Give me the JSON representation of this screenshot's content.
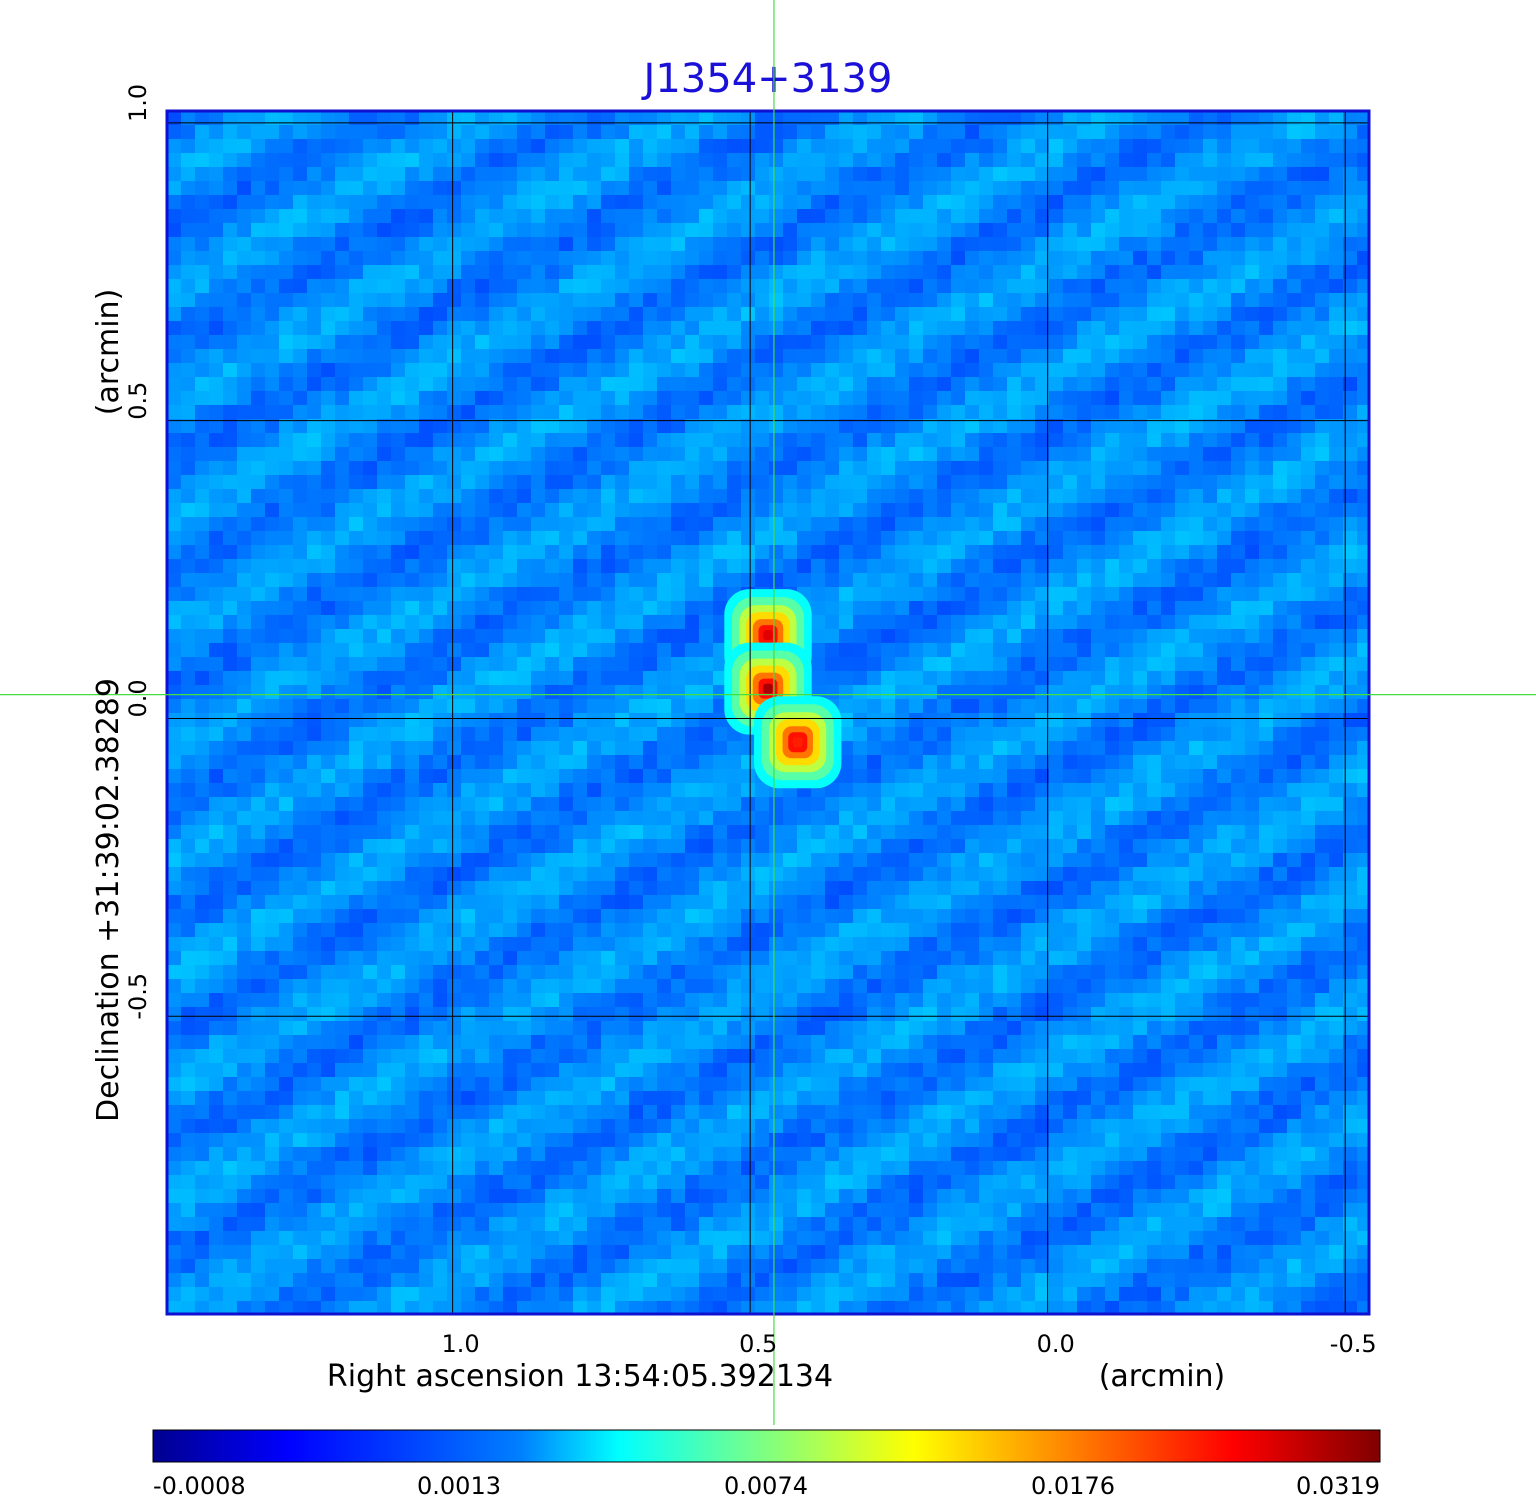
{
  "chart_data": {
    "type": "heatmap",
    "title": "J1354+3139",
    "xlabel": "Right ascension  13:54:05.392134",
    "xlabel_unit": "(arcmin)",
    "ylabel": "Declination  +31:39:02.38289",
    "ylabel_unit": "(arcmin)",
    "x_axis_reversed": true,
    "xlim": [
      1.48,
      -0.54
    ],
    "ylim": [
      -1.0,
      1.02
    ],
    "x_ticks": [
      "1.0",
      "0.5",
      "0.0",
      "-0.5"
    ],
    "x_tick_values": [
      1.0,
      0.5,
      0.0,
      -0.5
    ],
    "y_ticks": [
      "1.0",
      "0.5",
      "0.0",
      "-0.5"
    ],
    "y_tick_values": [
      1.0,
      0.5,
      0.0,
      -0.5
    ],
    "grid": true,
    "crosshair": {
      "x": 0.46,
      "y": 0.04,
      "color": "#44dd44"
    },
    "colorbar": {
      "orientation": "horizontal",
      "placement": "bottom",
      "ticks": [
        "-0.0008",
        "0.0013",
        "0.0074",
        "0.0176",
        "0.0319"
      ],
      "colormap": "jet"
    },
    "sources": [
      {
        "ra": 0.47,
        "dec": 0.14,
        "peak": 0.03
      },
      {
        "ra": 0.47,
        "dec": 0.05,
        "peak": 0.0319
      },
      {
        "ra": 0.42,
        "dec": -0.04,
        "peak": 0.028
      }
    ],
    "background_level": 0.001,
    "colors": {
      "frame": "#1010d0",
      "title": "#1a10d8",
      "grid": "#000000",
      "crosshair": "#44dd44"
    }
  }
}
